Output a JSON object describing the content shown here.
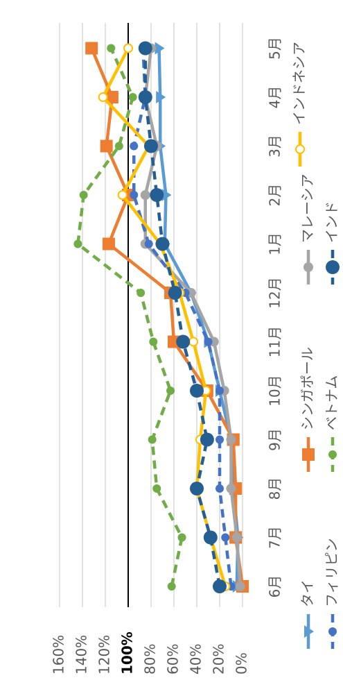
{
  "chart_data": {
    "type": "line",
    "orientation": "rotated-90-clockwise",
    "categories": [
      "6月",
      "7月",
      "8月",
      "9月",
      "10月",
      "11月",
      "12月",
      "1月",
      "2月",
      "3月",
      "4月",
      "5月"
    ],
    "value_axis": {
      "min": 0,
      "max": 160,
      "step": 20,
      "format": "percent",
      "reference": 100,
      "reference_label": "100%"
    },
    "grid": true,
    "legend_position": "right",
    "series": [
      {
        "name": "タイ",
        "color": "#5B9BD5",
        "dash": "solid",
        "marker": "triangle",
        "values": [
          5,
          4,
          8,
          10,
          20,
          30,
          45,
          68,
          67,
          72,
          72,
          73
        ]
      },
      {
        "name": "シンガポール",
        "color": "#ED7D31",
        "dash": "solid",
        "marker": "square",
        "values": [
          0,
          6,
          6,
          8,
          31,
          60,
          63,
          117,
          100,
          119,
          114,
          132
        ]
      },
      {
        "name": "マレーシア",
        "color": "#A5A5A5",
        "dash": "solid",
        "marker": "circle",
        "values": [
          2,
          5,
          10,
          10,
          16,
          25,
          45,
          85,
          85,
          75,
          85,
          80
        ]
      },
      {
        "name": "フィリピン",
        "color": "#4472C4",
        "dash": "dash",
        "marker": "circle-small",
        "values": [
          10,
          15,
          20,
          20,
          20,
          30,
          50,
          82,
          95,
          95,
          85,
          87
        ]
      },
      {
        "name": "ベトナム",
        "color": "#70AD47",
        "dash": "dash",
        "marker": "circle-small",
        "values": [
          62,
          53,
          75,
          79,
          63,
          78,
          89,
          144,
          139,
          108,
          96,
          115
        ]
      },
      {
        "name": "インドネシア",
        "color": "#FFC000",
        "dash": "solid",
        "marker": "circle-open",
        "values": [
          15,
          28,
          40,
          37,
          32,
          43,
          55,
          72,
          105,
          82,
          122,
          100
        ]
      },
      {
        "name": "インド",
        "color": "#255E91",
        "dash": "dash",
        "marker": "circle-large",
        "values": [
          20,
          28,
          40,
          31,
          40,
          52,
          59,
          70,
          75,
          80,
          85,
          85
        ]
      }
    ]
  }
}
